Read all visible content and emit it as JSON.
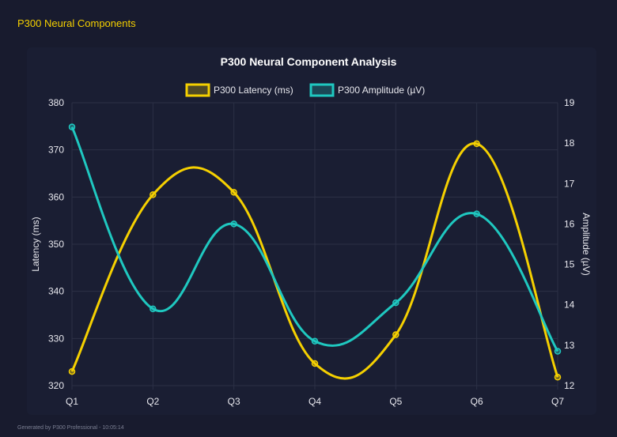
{
  "page": {
    "title": "P300 Neural Components",
    "footer": "Generated by P300 Professional - 10:05:14"
  },
  "chart_data": {
    "type": "line",
    "title": "P300 Neural Component Analysis",
    "categories": [
      "Q1",
      "Q2",
      "Q3",
      "Q4",
      "Q5",
      "Q6",
      "Q7"
    ],
    "series": [
      {
        "name": "P300 Latency (ms)",
        "axis": "left",
        "color": "#f5d000",
        "values": [
          323,
          360.5,
          361,
          324.7,
          330.8,
          371.3,
          321.8
        ]
      },
      {
        "name": "P300 Amplitude (µV)",
        "axis": "right",
        "color": "#1fc8c0",
        "values": [
          18.4,
          13.9,
          16.0,
          13.1,
          14.05,
          16.25,
          12.85
        ]
      }
    ],
    "ylabel": "Latency (ms)",
    "y2label": "Amplitude (µV)",
    "ylim": [
      320,
      380
    ],
    "y2lim": [
      12,
      19
    ],
    "yticks": [
      "320",
      "330",
      "340",
      "350",
      "360",
      "370",
      "380"
    ],
    "y2ticks": [
      "12",
      "13",
      "14",
      "15",
      "16",
      "17",
      "18",
      "19"
    ],
    "grid": true,
    "legend": "top"
  }
}
